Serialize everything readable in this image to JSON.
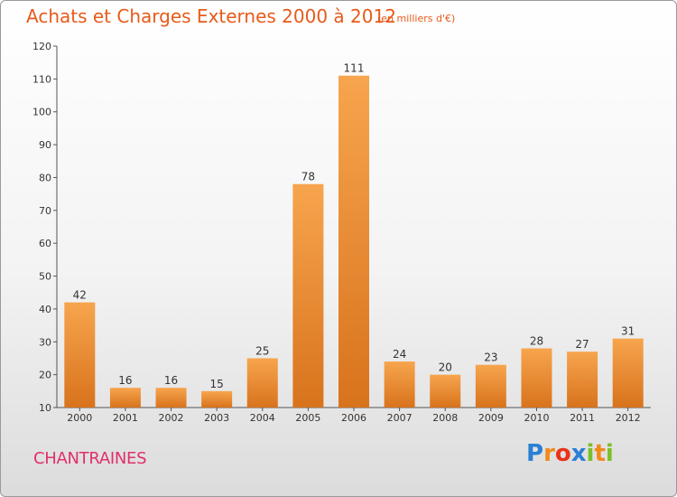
{
  "header": {
    "title": "Achats et Charges Externes 2000 à 2012",
    "subtitle": "(en milliers d'€)"
  },
  "commune": "CHANTRAINES",
  "logo": {
    "text": "Proxiti",
    "letters": [
      {
        "ch": "P",
        "color": "#2a7fd4"
      },
      {
        "ch": "r",
        "color": "#f08a1c"
      },
      {
        "ch": "o",
        "color": "#e8331a"
      },
      {
        "ch": "x",
        "color": "#2a7fd4"
      },
      {
        "ch": "i",
        "color": "#7bbf2a"
      },
      {
        "ch": "t",
        "color": "#f08a1c"
      },
      {
        "ch": "i",
        "color": "#7bbf2a"
      }
    ]
  },
  "colors": {
    "bar_light": "#f7a54e",
    "bar_dark": "#d8731c",
    "title": "#e85a1a",
    "commune": "#e0306a"
  },
  "chart_data": {
    "type": "bar",
    "title": "Achats et Charges Externes 2000 à 2012",
    "subtitle": "(en milliers d'€)",
    "categories": [
      "2000",
      "2001",
      "2002",
      "2003",
      "2004",
      "2005",
      "2006",
      "2007",
      "2008",
      "2009",
      "2010",
      "2011",
      "2012"
    ],
    "values": [
      42,
      16,
      16,
      15,
      25,
      78,
      111,
      24,
      20,
      23,
      28,
      27,
      31
    ],
    "ylim": [
      10,
      120
    ],
    "yticks": [
      10,
      20,
      30,
      40,
      50,
      60,
      70,
      80,
      90,
      100,
      110,
      120
    ],
    "grid": false,
    "data_labels": true
  }
}
